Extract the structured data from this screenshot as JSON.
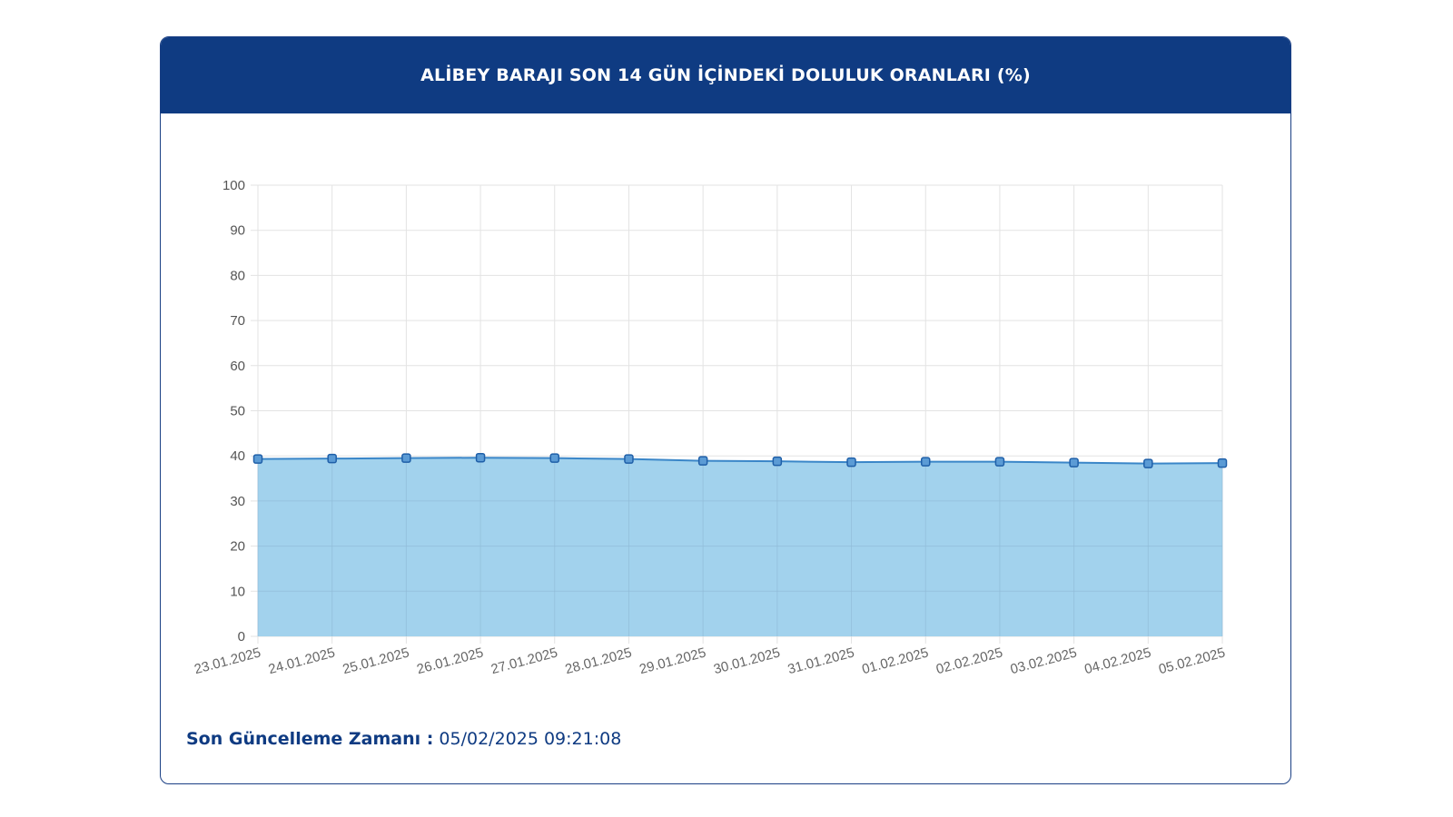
{
  "header": {
    "title": "ALİBEY BARAJI SON 14 GÜN İÇİNDEKİ DOLULUK ORANLARI (%)"
  },
  "footer": {
    "label": "Son Güncelleme Zamanı :",
    "value": "05/02/2025 09:21:08"
  },
  "colors": {
    "header_bg": "#0f3b82",
    "line": "#3a86c8",
    "fill": "#9dd0ec",
    "marker_fill": "#5b9bd5",
    "marker_stroke": "#1f5fa8",
    "grid": "#e3e3e3"
  },
  "chart_data": {
    "type": "area",
    "categories": [
      "23.01.2025",
      "24.01.2025",
      "25.01.2025",
      "26.01.2025",
      "27.01.2025",
      "28.01.2025",
      "29.01.2025",
      "30.01.2025",
      "31.01.2025",
      "01.02.2025",
      "02.02.2025",
      "03.02.2025",
      "04.02.2025",
      "05.02.2025"
    ],
    "series": [
      {
        "values": [
          39.3,
          39.4,
          39.5,
          39.6,
          39.5,
          39.3,
          38.9,
          38.8,
          38.6,
          38.7,
          38.7,
          38.5,
          38.3,
          38.4
        ]
      }
    ],
    "ylim": [
      0,
      100
    ],
    "yticks": [
      0,
      10,
      20,
      30,
      40,
      50,
      60,
      70,
      80,
      90,
      100
    ],
    "grid": true,
    "legend": "none"
  }
}
